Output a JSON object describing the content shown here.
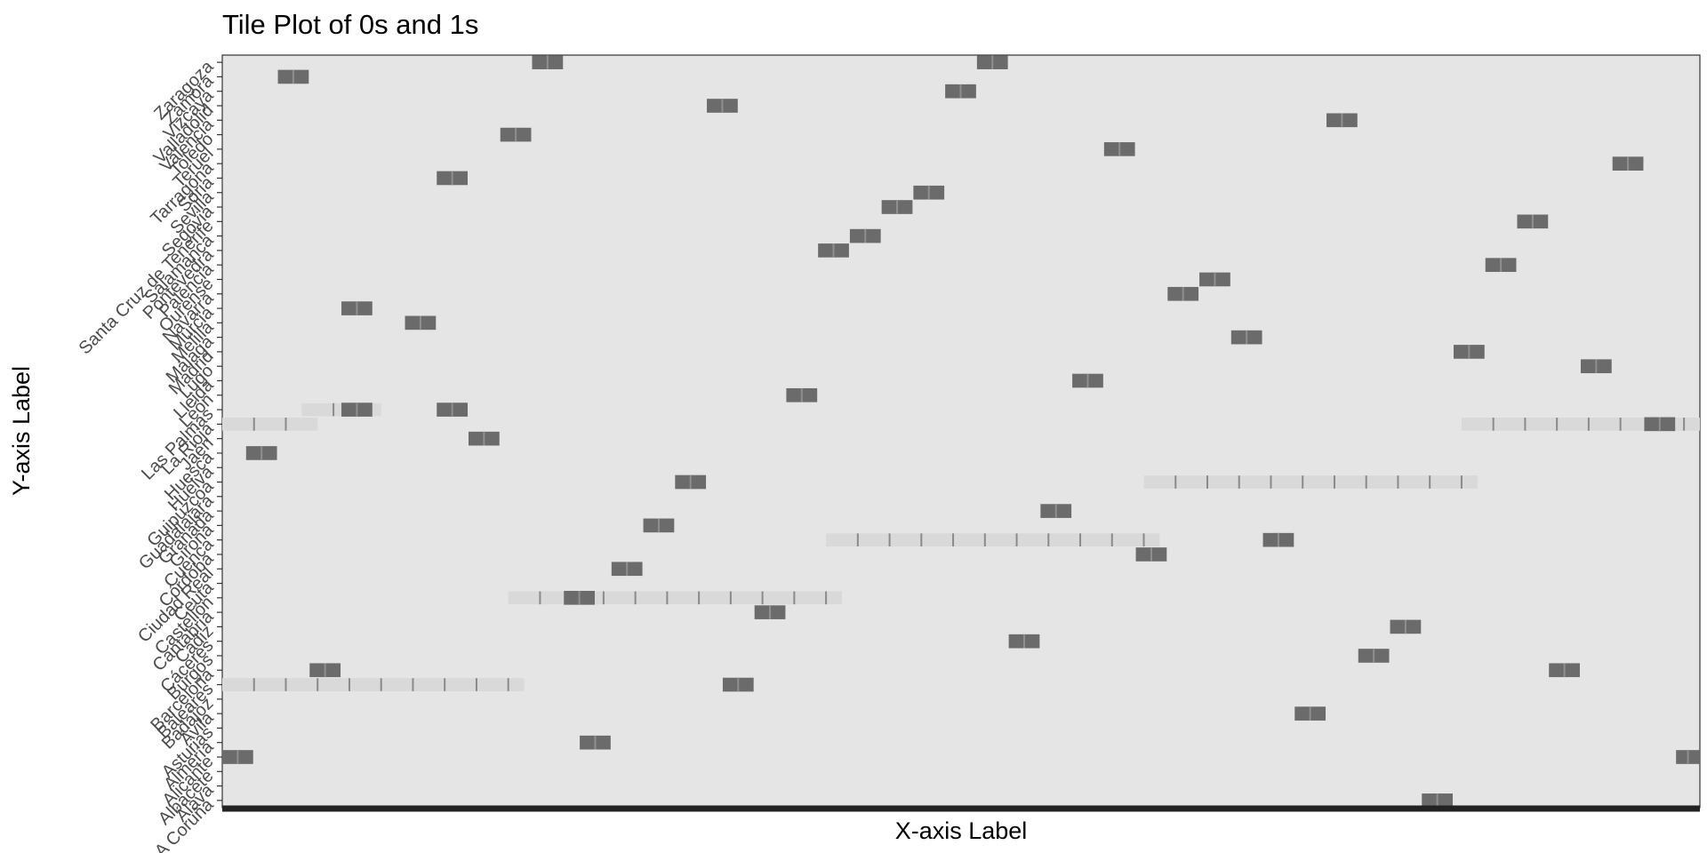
{
  "chart_data": {
    "type": "heatmap",
    "title": "Tile Plot of 0s and 1s",
    "xlabel": "X-axis Label",
    "ylabel": "Y-axis Label",
    "y_categories": [
      "A Coruña",
      "Álava",
      "Albacete",
      "Alicante",
      "Almería",
      "Asturias",
      "Ávila",
      "Badajoz",
      "Baleares",
      "Barcelona",
      "Burgos",
      "Cáceres",
      "Cádiz",
      "Cantabria",
      "Castellón",
      "Ceuta",
      "Ciudad Real",
      "Córdoba",
      "Cuenca",
      "Girona",
      "Granada",
      "Guadalajara",
      "Guipúzcoa",
      "Huelva",
      "Huesca",
      "Jaén",
      "La Rioja",
      "Las Palmas",
      "León",
      "Lleida",
      "Lugo",
      "Madrid",
      "Málaga",
      "Melilla",
      "Murcia",
      "Navarra",
      "Ourense",
      "Palencia",
      "Pontevedra",
      "Salamanca",
      "Santa Cruz de Tenerife",
      "Segovia",
      "Sevilla",
      "Soria",
      "Tarragona",
      "Teruel",
      "Toledo",
      "Valencia",
      "Valladolid",
      "Vizcaya",
      "Zamora",
      "Zaragoza"
    ],
    "n_x": 93,
    "value_levels": [
      0,
      1
    ],
    "fill_colors": {
      "zero": "#e5e5e5",
      "one": "#6b6b6b",
      "mixed": "#d9d9d9"
    },
    "ones": [
      {
        "x": 1,
        "y": "Alicante"
      },
      {
        "x": 93,
        "y": "Alicante"
      },
      {
        "x": 3,
        "y": "Huesca"
      },
      {
        "x": 5,
        "y": "Zamora"
      },
      {
        "x": 7,
        "y": "Barcelona"
      },
      {
        "x": 9,
        "y": "Las Palmas"
      },
      {
        "x": 9,
        "y": "Murcia"
      },
      {
        "x": 13,
        "y": "Melilla"
      },
      {
        "x": 15,
        "y": "Las Palmas"
      },
      {
        "x": 15,
        "y": "Soria"
      },
      {
        "x": 17,
        "y": "Jaén"
      },
      {
        "x": 19,
        "y": "Toledo"
      },
      {
        "x": 21,
        "y": "Zaragoza"
      },
      {
        "x": 23,
        "y": "Castellón"
      },
      {
        "x": 24,
        "y": "Almería"
      },
      {
        "x": 26,
        "y": "Ciudad Real"
      },
      {
        "x": 28,
        "y": "Girona"
      },
      {
        "x": 30,
        "y": "Guipúzcoa"
      },
      {
        "x": 32,
        "y": "Valladolid"
      },
      {
        "x": 33,
        "y": "Baleares"
      },
      {
        "x": 35,
        "y": "Cantabria"
      },
      {
        "x": 37,
        "y": "León"
      },
      {
        "x": 39,
        "y": "Pontevedra"
      },
      {
        "x": 41,
        "y": "Salamanca"
      },
      {
        "x": 43,
        "y": "Segovia"
      },
      {
        "x": 45,
        "y": "Sevilla"
      },
      {
        "x": 47,
        "y": "Vizcaya"
      },
      {
        "x": 49,
        "y": "Zaragoza"
      },
      {
        "x": 51,
        "y": "Cáceres"
      },
      {
        "x": 53,
        "y": "Granada"
      },
      {
        "x": 55,
        "y": "Lleida"
      },
      {
        "x": 57,
        "y": "Teruel"
      },
      {
        "x": 59,
        "y": "Córdoba"
      },
      {
        "x": 61,
        "y": "Navarra"
      },
      {
        "x": 63,
        "y": "Ourense"
      },
      {
        "x": 65,
        "y": "Málaga"
      },
      {
        "x": 67,
        "y": "Cuenca"
      },
      {
        "x": 69,
        "y": "Ávila"
      },
      {
        "x": 71,
        "y": "Valencia"
      },
      {
        "x": 73,
        "y": "Burgos"
      },
      {
        "x": 75,
        "y": "Cádiz"
      },
      {
        "x": 77,
        "y": "A Coruña"
      },
      {
        "x": 79,
        "y": "Madrid"
      },
      {
        "x": 81,
        "y": "Palencia"
      },
      {
        "x": 83,
        "y": "Santa Cruz de Tenerife"
      },
      {
        "x": 85,
        "y": "Barcelona"
      },
      {
        "x": 87,
        "y": "Lugo"
      },
      {
        "x": 89,
        "y": "Tarragona"
      },
      {
        "x": 91,
        "y": "La Rioja"
      }
    ],
    "mixed_bands": [
      {
        "y": "La Rioja",
        "x_range": [
          1,
          6
        ]
      },
      {
        "y": "La Rioja",
        "x_range": [
          79,
          93
        ]
      },
      {
        "y": "Las Palmas",
        "x_range": [
          6,
          10
        ]
      },
      {
        "y": "Guipúzcoa",
        "x_range": [
          59,
          79
        ]
      },
      {
        "y": "Cuenca",
        "x_range": [
          39,
          59
        ]
      },
      {
        "y": "Castellón",
        "x_range": [
          19,
          39
        ]
      },
      {
        "y": "Baleares",
        "x_range": [
          1,
          19
        ]
      }
    ]
  }
}
